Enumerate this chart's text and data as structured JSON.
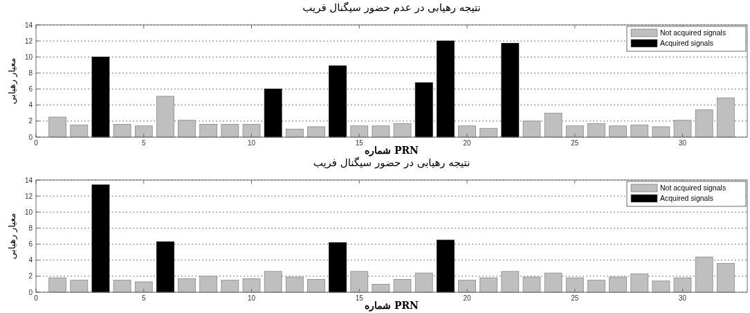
{
  "chart_data": [
    {
      "type": "bar",
      "title": "نتیجه رهیابی در عدم حضور سیگنال فریب",
      "xlabel": "شماره PRN",
      "ylabel": "معیار رهیابی",
      "x": [
        1,
        2,
        3,
        4,
        5,
        6,
        7,
        8,
        9,
        10,
        11,
        12,
        13,
        14,
        15,
        16,
        17,
        18,
        19,
        20,
        21,
        22,
        23,
        24,
        25,
        26,
        27,
        28,
        29,
        30,
        31,
        32
      ],
      "xlim": [
        0,
        33
      ],
      "xticks": [
        0,
        5,
        10,
        15,
        20,
        25,
        30
      ],
      "ylim": [
        0,
        14
      ],
      "yticks": [
        0,
        2,
        4,
        6,
        8,
        10,
        12,
        14
      ],
      "grid": "y",
      "legend": "top right",
      "series": [
        {
          "name": "Not acquired signals",
          "color": "#bfbfbf",
          "values": [
            2.5,
            1.5,
            null,
            1.6,
            1.4,
            5.1,
            2.1,
            1.6,
            1.6,
            1.6,
            null,
            1.0,
            1.3,
            null,
            1.4,
            1.4,
            1.7,
            null,
            null,
            1.4,
            1.1,
            null,
            2.0,
            3.0,
            1.4,
            1.7,
            1.4,
            1.5,
            1.3,
            2.1,
            3.4,
            4.9
          ]
        },
        {
          "name": "Acquired signals",
          "color": "#000000",
          "values": [
            null,
            null,
            10,
            null,
            null,
            null,
            null,
            null,
            null,
            null,
            6,
            null,
            null,
            8.9,
            null,
            null,
            null,
            6.8,
            12,
            null,
            null,
            11.7,
            null,
            null,
            null,
            null,
            null,
            null,
            null,
            null,
            null,
            null
          ]
        }
      ]
    },
    {
      "type": "bar",
      "title": "نتیجه رهیابی در حضور سیگنال فریب",
      "xlabel": "شماره PRN",
      "ylabel": "معیار رهیابی",
      "x": [
        1,
        2,
        3,
        4,
        5,
        6,
        7,
        8,
        9,
        10,
        11,
        12,
        13,
        14,
        15,
        16,
        17,
        18,
        19,
        20,
        21,
        22,
        23,
        24,
        25,
        26,
        27,
        28,
        29,
        30,
        31,
        32
      ],
      "xlim": [
        0,
        33
      ],
      "xticks": [
        0,
        5,
        10,
        15,
        20,
        25,
        30
      ],
      "ylim": [
        0,
        14
      ],
      "yticks": [
        0,
        2,
        4,
        6,
        8,
        10,
        12,
        14
      ],
      "grid": "y",
      "legend": "top right",
      "series": [
        {
          "name": "Not acquired signals",
          "color": "#bfbfbf",
          "values": [
            1.8,
            1.5,
            null,
            1.5,
            1.3,
            null,
            1.7,
            2.0,
            1.5,
            1.7,
            2.6,
            1.9,
            1.6,
            null,
            2.6,
            1.0,
            1.6,
            2.4,
            null,
            1.5,
            1.8,
            2.6,
            1.9,
            2.4,
            1.8,
            1.5,
            1.9,
            2.3,
            1.4,
            1.8,
            4.4,
            3.6
          ]
        },
        {
          "name": "Acquired signals",
          "color": "#000000",
          "values": [
            null,
            null,
            13.4,
            null,
            null,
            6.3,
            null,
            null,
            null,
            null,
            null,
            null,
            null,
            6.2,
            null,
            null,
            null,
            null,
            6.5,
            null,
            null,
            null,
            null,
            null,
            null,
            null,
            null,
            null,
            null,
            null,
            null,
            null
          ]
        }
      ]
    }
  ]
}
